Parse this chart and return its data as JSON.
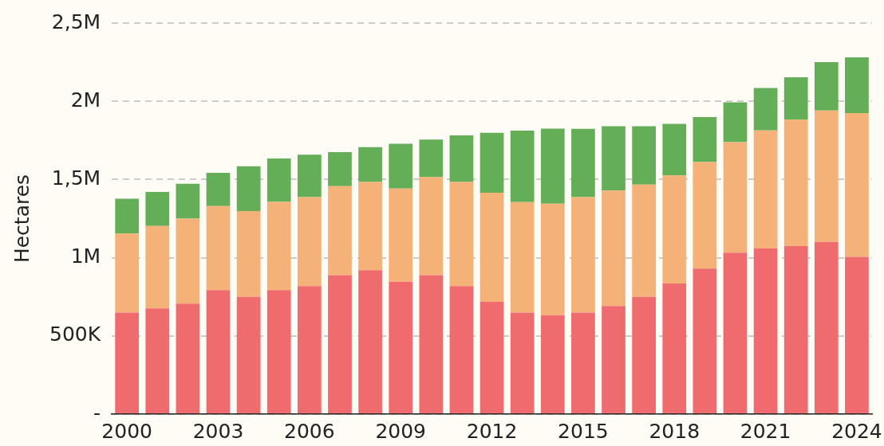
{
  "chart_data": {
    "type": "bar",
    "stacked": true,
    "ylabel": "Hectares",
    "categories": [
      "2000",
      null,
      null,
      "2003",
      null,
      null,
      "2006",
      null,
      null,
      "2009",
      null,
      null,
      "2012",
      null,
      null,
      "2015",
      null,
      null,
      "2018",
      null,
      null,
      "2021",
      null,
      null,
      "2024"
    ],
    "series": [
      {
        "color": "#ef6b6e",
        "values": [
          649000,
          676000,
          707000,
          793000,
          750000,
          793000,
          819000,
          888000,
          920000,
          846000,
          888000,
          819000,
          718000,
          649000,
          633000,
          649000,
          691000,
          750000,
          835000,
          931000,
          1032000,
          1059000,
          1074000,
          1101000,
          1005000
        ]
      },
      {
        "color": "#f4b178",
        "values": [
          505000,
          527000,
          543000,
          537000,
          548000,
          564000,
          569000,
          569000,
          564000,
          596000,
          628000,
          665000,
          697000,
          707000,
          713000,
          739000,
          739000,
          718000,
          691000,
          681000,
          707000,
          755000,
          809000,
          840000,
          920000
        ]
      },
      {
        "color": "#63ae56",
        "values": [
          223000,
          218000,
          223000,
          213000,
          287000,
          277000,
          271000,
          218000,
          223000,
          287000,
          239000,
          298000,
          383000,
          457000,
          479000,
          436000,
          410000,
          372000,
          330000,
          287000,
          255000,
          271000,
          271000,
          309000,
          356000
        ]
      }
    ],
    "ylim": [
      0,
      2500000
    ],
    "yticks": [
      {
        "value": 0,
        "label": "-"
      },
      {
        "value": 500000,
        "label": "500K"
      },
      {
        "value": 1000000,
        "label": "1M"
      },
      {
        "value": 1500000,
        "label": "1,5M"
      },
      {
        "value": 2000000,
        "label": "2M"
      },
      {
        "value": 2500000,
        "label": "2,5M"
      }
    ],
    "grid": "y",
    "legend": false
  }
}
